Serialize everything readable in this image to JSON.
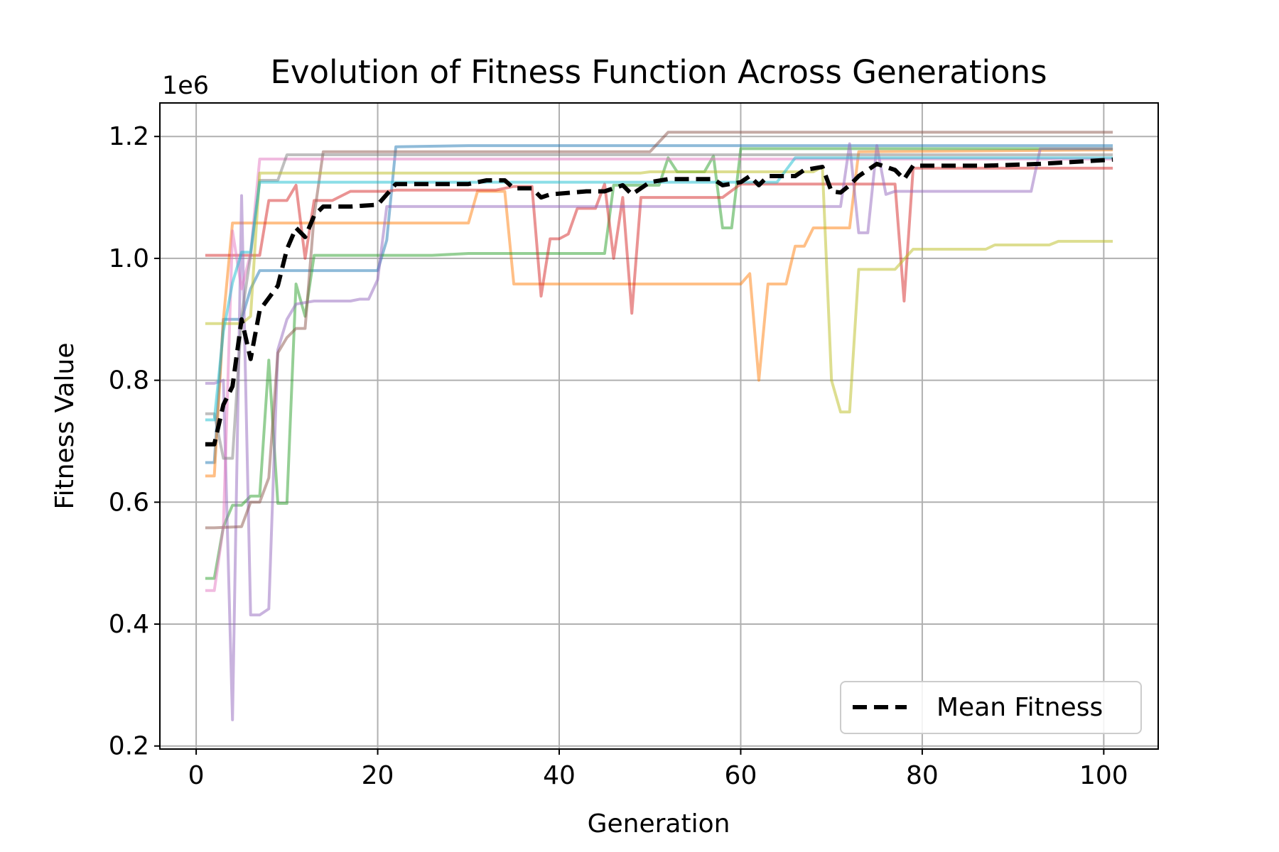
{
  "chart_data": {
    "type": "line",
    "title": "Evolution of Fitness Function Across Generations",
    "xlabel": "Generation",
    "ylabel": "Fitness Value",
    "y_scale_label": "1e6",
    "xlim": [
      -4,
      106
    ],
    "ylim": [
      195000,
      1255000
    ],
    "xticks": [
      0,
      20,
      40,
      60,
      80,
      100
    ],
    "yticks": [
      200000,
      400000,
      600000,
      800000,
      1000000,
      1200000
    ],
    "ytick_labels": [
      "0.2",
      "0.4",
      "0.6",
      "0.8",
      "1.0",
      "1.2"
    ],
    "grid": true,
    "legend_position": "lower-right",
    "mean_series": {
      "name": "Mean Fitness",
      "color": "#000000",
      "points": [
        [
          1,
          695000
        ],
        [
          2,
          695000
        ],
        [
          3,
          760000
        ],
        [
          4,
          790000
        ],
        [
          5,
          900000
        ],
        [
          6,
          835000
        ],
        [
          7,
          915000
        ],
        [
          8,
          935000
        ],
        [
          9,
          955000
        ],
        [
          10,
          1015000
        ],
        [
          11,
          1050000
        ],
        [
          12,
          1035000
        ],
        [
          13,
          1070000
        ],
        [
          14,
          1085000
        ],
        [
          17,
          1085000
        ],
        [
          20,
          1088000
        ],
        [
          22,
          1122000
        ],
        [
          30,
          1122000
        ],
        [
          32,
          1128000
        ],
        [
          34,
          1128000
        ],
        [
          35,
          1115000
        ],
        [
          37,
          1115000
        ],
        [
          38,
          1100000
        ],
        [
          39,
          1105000
        ],
        [
          43,
          1110000
        ],
        [
          45,
          1110000
        ],
        [
          47,
          1120000
        ],
        [
          48,
          1105000
        ],
        [
          50,
          1125000
        ],
        [
          52,
          1130000
        ],
        [
          57,
          1130000
        ],
        [
          58,
          1120000
        ],
        [
          60,
          1125000
        ],
        [
          61,
          1135000
        ],
        [
          62,
          1120000
        ],
        [
          63,
          1135000
        ],
        [
          66,
          1135000
        ],
        [
          67,
          1145000
        ],
        [
          69,
          1150000
        ],
        [
          70,
          1110000
        ],
        [
          71,
          1108000
        ],
        [
          72,
          1120000
        ],
        [
          73,
          1135000
        ],
        [
          75,
          1155000
        ],
        [
          77,
          1145000
        ],
        [
          78,
          1130000
        ],
        [
          79,
          1152000
        ],
        [
          87,
          1152000
        ],
        [
          93,
          1155000
        ],
        [
          101,
          1162000
        ]
      ]
    },
    "series": [
      {
        "color": "#1f77b4",
        "points": [
          [
            1,
            665000
          ],
          [
            2,
            665000
          ],
          [
            3,
            900000
          ],
          [
            5,
            900000
          ],
          [
            6,
            950000
          ],
          [
            7,
            980000
          ],
          [
            20,
            980000
          ],
          [
            21,
            1030000
          ],
          [
            22,
            1183000
          ],
          [
            30,
            1185000
          ],
          [
            101,
            1185000
          ]
        ]
      },
      {
        "color": "#ff7f0e",
        "points": [
          [
            1,
            643000
          ],
          [
            2,
            643000
          ],
          [
            3,
            900000
          ],
          [
            4,
            1058000
          ],
          [
            30,
            1058000
          ],
          [
            31,
            1110000
          ],
          [
            34,
            1110000
          ],
          [
            35,
            958000
          ],
          [
            60,
            958000
          ],
          [
            61,
            975000
          ],
          [
            62,
            800000
          ],
          [
            63,
            958000
          ],
          [
            65,
            958000
          ],
          [
            66,
            1020000
          ],
          [
            67,
            1020000
          ],
          [
            68,
            1050000
          ],
          [
            71,
            1050000
          ],
          [
            72,
            1050000
          ],
          [
            73,
            1175000
          ],
          [
            101,
            1178000
          ]
        ]
      },
      {
        "color": "#2ca02c",
        "points": [
          [
            1,
            475000
          ],
          [
            2,
            475000
          ],
          [
            3,
            560000
          ],
          [
            4,
            595000
          ],
          [
            5,
            595000
          ],
          [
            6,
            610000
          ],
          [
            7,
            610000
          ],
          [
            8,
            833000
          ],
          [
            9,
            598000
          ],
          [
            10,
            598000
          ],
          [
            11,
            958000
          ],
          [
            12,
            905000
          ],
          [
            13,
            1005000
          ],
          [
            26,
            1005000
          ],
          [
            30,
            1008000
          ],
          [
            45,
            1008000
          ],
          [
            46,
            1120000
          ],
          [
            50,
            1120000
          ],
          [
            51,
            1120000
          ],
          [
            52,
            1165000
          ],
          [
            53,
            1142000
          ],
          [
            56,
            1142000
          ],
          [
            57,
            1168000
          ],
          [
            58,
            1050000
          ],
          [
            59,
            1050000
          ],
          [
            60,
            1180000
          ],
          [
            101,
            1180000
          ]
        ]
      },
      {
        "color": "#d62728",
        "points": [
          [
            1,
            1005000
          ],
          [
            3,
            1005000
          ],
          [
            4,
            1005000
          ],
          [
            7,
            1005000
          ],
          [
            8,
            1095000
          ],
          [
            10,
            1095000
          ],
          [
            11,
            1120000
          ],
          [
            12,
            1000000
          ],
          [
            13,
            1095000
          ],
          [
            15,
            1095000
          ],
          [
            17,
            1110000
          ],
          [
            21,
            1110000
          ],
          [
            22,
            1112000
          ],
          [
            33,
            1112000
          ],
          [
            35,
            1118000
          ],
          [
            37,
            1118000
          ],
          [
            38,
            938000
          ],
          [
            39,
            1032000
          ],
          [
            40,
            1032000
          ],
          [
            41,
            1040000
          ],
          [
            42,
            1082000
          ],
          [
            44,
            1082000
          ],
          [
            45,
            1122000
          ],
          [
            46,
            1000000
          ],
          [
            47,
            1100000
          ],
          [
            48,
            910000
          ],
          [
            49,
            1100000
          ],
          [
            58,
            1100000
          ],
          [
            60,
            1122000
          ],
          [
            77,
            1122000
          ],
          [
            78,
            930000
          ],
          [
            79,
            1148000
          ],
          [
            101,
            1148000
          ]
        ]
      },
      {
        "color": "#9467bd",
        "points": [
          [
            1,
            795000
          ],
          [
            2,
            795000
          ],
          [
            3,
            800000
          ],
          [
            4,
            243000
          ],
          [
            5,
            1103000
          ],
          [
            6,
            415000
          ],
          [
            7,
            415000
          ],
          [
            8,
            425000
          ],
          [
            9,
            850000
          ],
          [
            10,
            900000
          ],
          [
            11,
            925000
          ],
          [
            13,
            930000
          ],
          [
            17,
            930000
          ],
          [
            18,
            933000
          ],
          [
            19,
            933000
          ],
          [
            20,
            965000
          ],
          [
            21,
            1085000
          ],
          [
            71,
            1085000
          ],
          [
            72,
            1188000
          ],
          [
            73,
            1042000
          ],
          [
            74,
            1042000
          ],
          [
            75,
            1185000
          ],
          [
            76,
            1105000
          ],
          [
            77,
            1110000
          ],
          [
            92,
            1110000
          ],
          [
            93,
            1180000
          ],
          [
            101,
            1180000
          ]
        ]
      },
      {
        "color": "#8c564b",
        "points": [
          [
            1,
            558000
          ],
          [
            2,
            558000
          ],
          [
            5,
            560000
          ],
          [
            6,
            600000
          ],
          [
            7,
            600000
          ],
          [
            8,
            640000
          ],
          [
            9,
            845000
          ],
          [
            10,
            870000
          ],
          [
            11,
            885000
          ],
          [
            12,
            885000
          ],
          [
            13,
            1070000
          ],
          [
            14,
            1175000
          ],
          [
            50,
            1175000
          ],
          [
            52,
            1207000
          ],
          [
            101,
            1207000
          ]
        ]
      },
      {
        "color": "#e377c2",
        "points": [
          [
            1,
            455000
          ],
          [
            2,
            455000
          ],
          [
            3,
            560000
          ],
          [
            4,
            1045000
          ],
          [
            5,
            950000
          ],
          [
            6,
            1008000
          ],
          [
            7,
            1163000
          ],
          [
            101,
            1163000
          ]
        ]
      },
      {
        "color": "#7f7f7f",
        "points": [
          [
            1,
            745000
          ],
          [
            2,
            745000
          ],
          [
            3,
            672000
          ],
          [
            4,
            672000
          ],
          [
            5,
            905000
          ],
          [
            6,
            1005000
          ],
          [
            7,
            1128000
          ],
          [
            9,
            1128000
          ],
          [
            10,
            1170000
          ],
          [
            101,
            1170000
          ]
        ]
      },
      {
        "color": "#bcbd22",
        "points": [
          [
            1,
            893000
          ],
          [
            4,
            893000
          ],
          [
            5,
            893000
          ],
          [
            6,
            905000
          ],
          [
            7,
            1140000
          ],
          [
            49,
            1140000
          ],
          [
            50,
            1142000
          ],
          [
            68,
            1142000
          ],
          [
            69,
            1150000
          ],
          [
            70,
            800000
          ],
          [
            71,
            748000
          ],
          [
            72,
            748000
          ],
          [
            73,
            982000
          ],
          [
            77,
            982000
          ],
          [
            79,
            1015000
          ],
          [
            87,
            1015000
          ],
          [
            88,
            1022000
          ],
          [
            94,
            1022000
          ],
          [
            95,
            1028000
          ],
          [
            101,
            1028000
          ]
        ]
      },
      {
        "color": "#17becf",
        "points": [
          [
            1,
            735000
          ],
          [
            2,
            735000
          ],
          [
            3,
            880000
          ],
          [
            4,
            960000
          ],
          [
            5,
            1010000
          ],
          [
            6,
            1010000
          ],
          [
            7,
            1125000
          ],
          [
            64,
            1125000
          ],
          [
            66,
            1165000
          ],
          [
            101,
            1165000
          ]
        ]
      }
    ]
  }
}
